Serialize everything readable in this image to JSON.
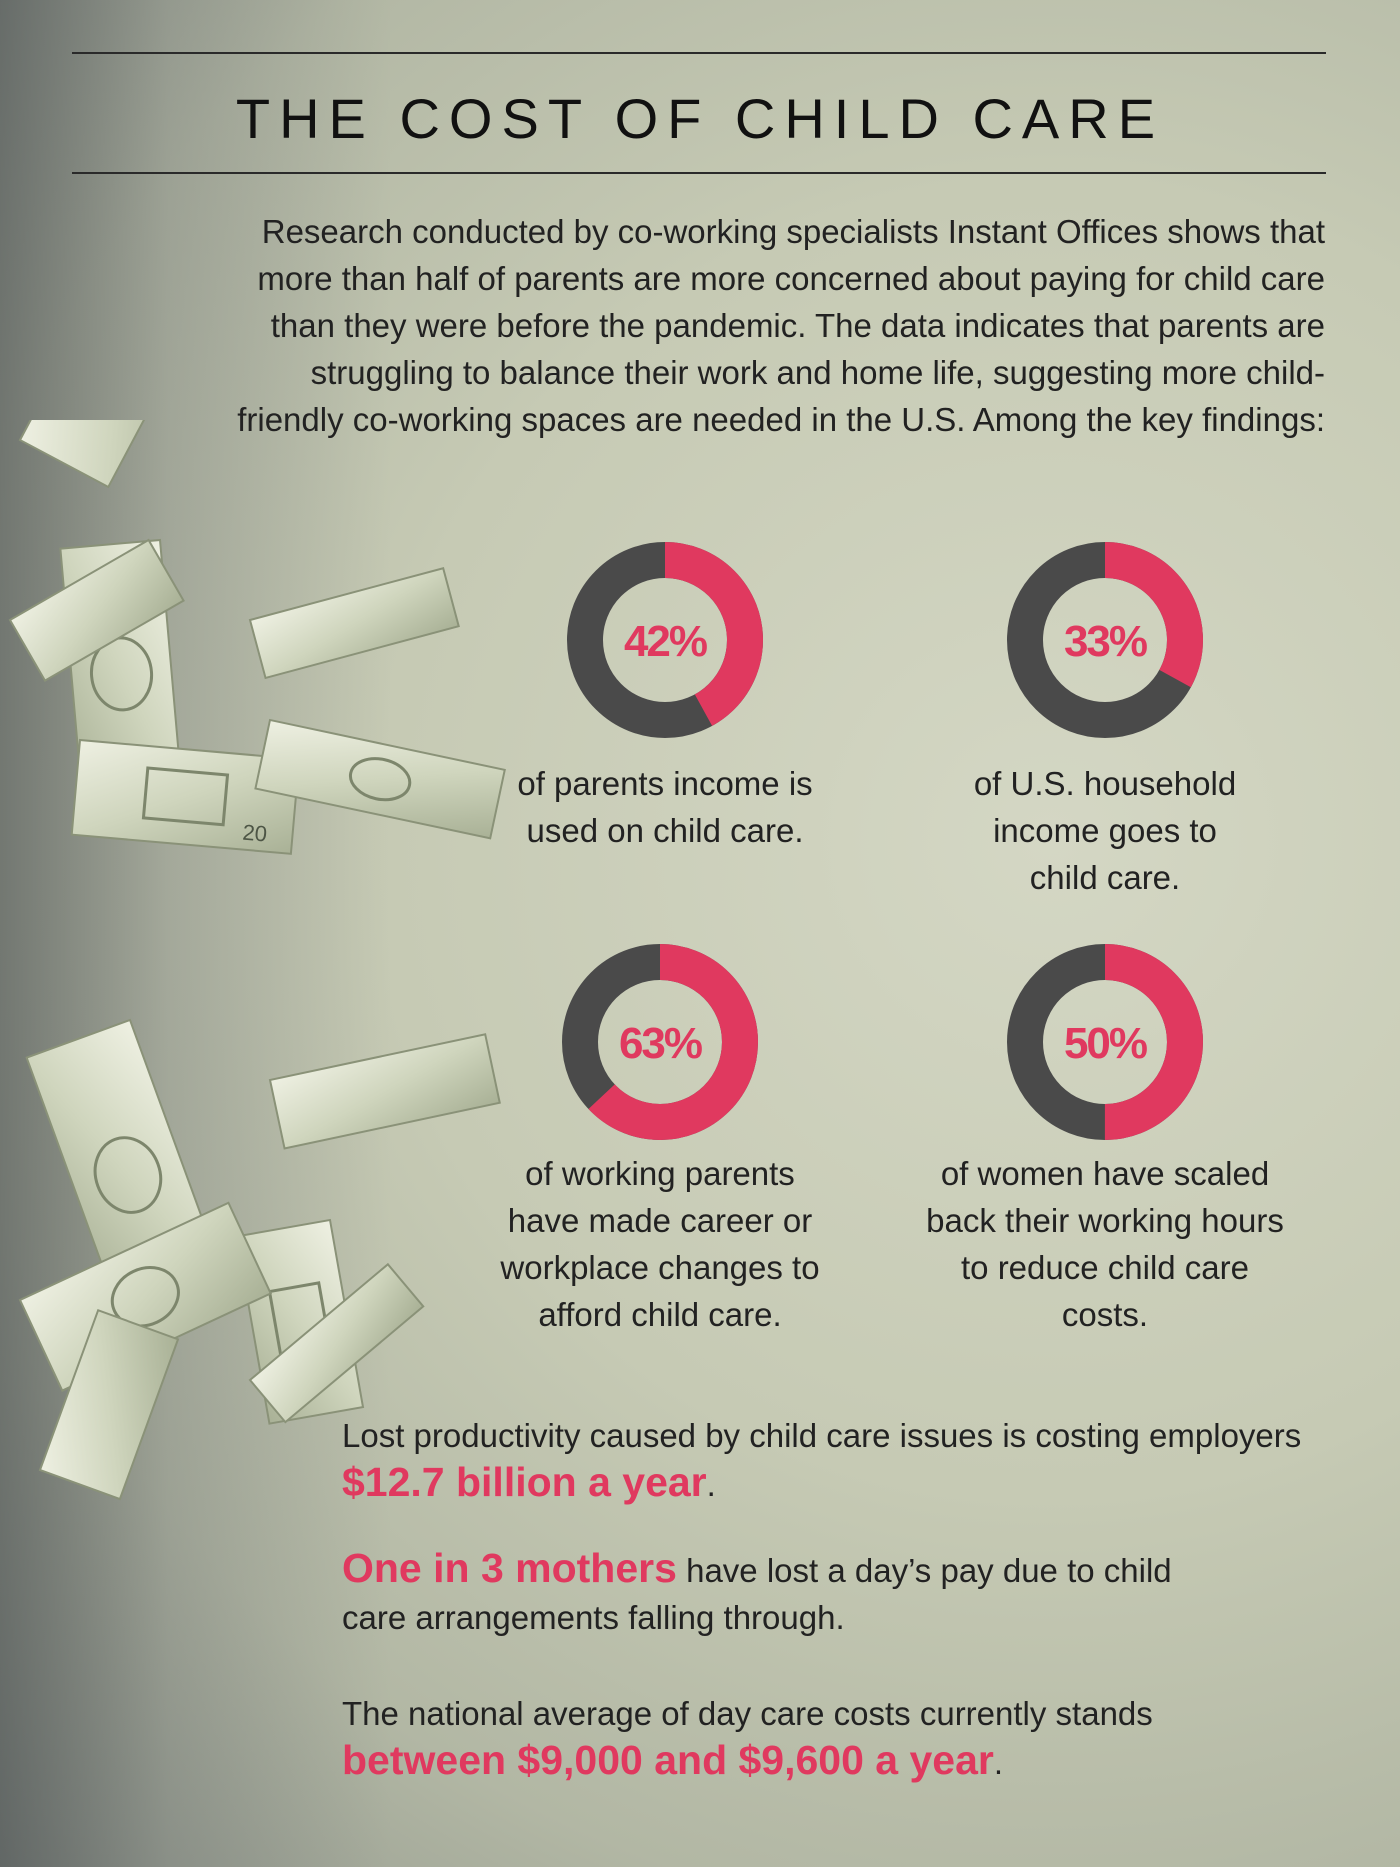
{
  "title": "THE COST OF CHILD CARE",
  "intro": "Research conducted by co-working specialists Instant Offices shows that more than half of parents are more concerned about paying for child care than they were before the pandemic. The data indicates that parents are struggling to balance their work and home life, suggesting more child-friendly co-working spaces are needed in the U.S. Among the key findings:",
  "colors": {
    "accent": "#e0395f",
    "ring": "#4a4a4a"
  },
  "stats": [
    {
      "value": 42,
      "label": "42%",
      "description": "of parents income is used on child care."
    },
    {
      "value": 33,
      "label": "33%",
      "description": "of U.S. household income goes to child care."
    },
    {
      "value": 63,
      "label": "63%",
      "description": "of working parents have made career or workplace changes to afford child care."
    },
    {
      "value": 50,
      "label": "50%",
      "description": "of women have scaled back their working hours to reduce child care costs."
    }
  ],
  "facts": [
    {
      "before": "Lost productivity caused by child care issues is costing employers ",
      "highlight": "$12.7 billion a year",
      "after": "."
    },
    {
      "before": "",
      "highlight": "One in 3 mothers",
      "after": " have lost a day’s pay due to child care arrangements falling through."
    },
    {
      "before": "The national average of day care costs currently stands ",
      "highlight": "between $9,000 and $9,600 a year",
      "after": "."
    }
  ],
  "image": {
    "icon": "falling-dollar-bills",
    "bill_denomination": "20"
  }
}
